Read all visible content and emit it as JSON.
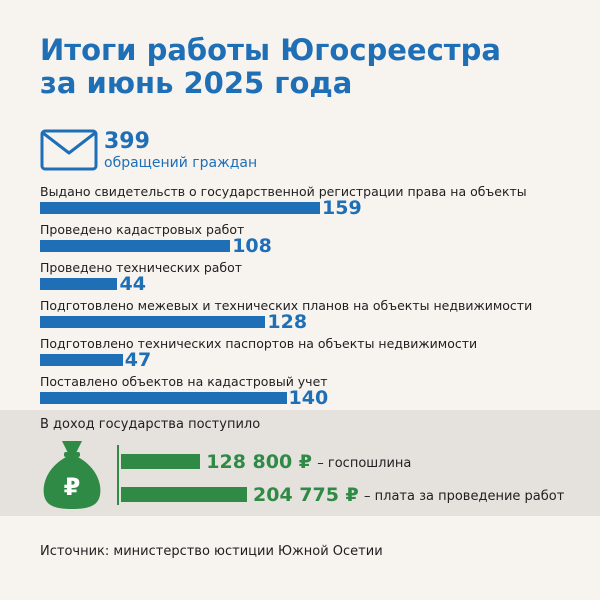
{
  "header": {
    "title_line1": "Итоги работы Югосреестра",
    "title_line2": "за июнь 2025 года"
  },
  "appeals": {
    "count": "399",
    "label": "обращений граждан",
    "icon": "envelope-icon"
  },
  "chart_data": {
    "type": "bar",
    "orientation": "horizontal",
    "categories": [
      "Выдано свидетельств о государственной регистрации права на объекты",
      "Проведено кадастровых работ",
      "Проведено технических работ",
      "Подготовлено межевых и технических планов на объекты недвижимости",
      "Подготовлено технических паспортов на объекты недвижимости",
      "Поставлено объектов на кадастровый учет"
    ],
    "values": [
      159,
      108,
      44,
      128,
      47,
      140
    ],
    "bar_color": "#1f6fb7"
  },
  "income": {
    "title": "В доход государства поступило",
    "icon": "money-bag-ruble-icon",
    "items": [
      {
        "amount": 128800,
        "value": "128 800 ₽",
        "desc": "– госпошлина"
      },
      {
        "amount": 204775,
        "value": "204 775 ₽",
        "desc": "– плата за проведение работ"
      }
    ],
    "bar_color": "#2e8a45"
  },
  "source": "Источник: министерство юстиции Южной Осетии"
}
